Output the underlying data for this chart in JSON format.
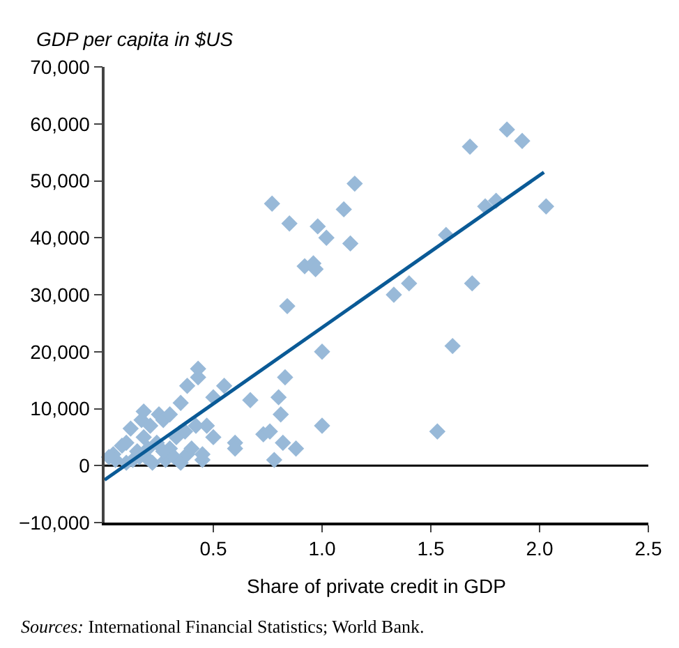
{
  "chart_data": {
    "type": "scatter",
    "ylabel": "GDP per capita in $US",
    "xlabel": "Share of private credit in GDP",
    "annotations": [
      "Sources: International Financial Statistics; World Bank."
    ],
    "marker": "diamond",
    "grid": false,
    "legend": false,
    "xlim": [
      0,
      2.5
    ],
    "xticks": [
      0.5,
      {
        "value": 1.0,
        "label": "1.0"
      },
      1.5,
      {
        "value": 2.0,
        "label": "2.0"
      },
      2.5
    ],
    "ylim": [
      -10000,
      70000
    ],
    "yticks": [
      {
        "value": -10000,
        "label": "−10,000"
      },
      0,
      {
        "value": 10000,
        "label": "10,000"
      },
      {
        "value": 20000,
        "label": "20,000"
      },
      {
        "value": 30000,
        "label": "30,000"
      },
      {
        "value": 40000,
        "label": "40,000"
      },
      {
        "value": 50000,
        "label": "50,000"
      },
      {
        "value": 60000,
        "label": "60,000"
      },
      {
        "value": 70000,
        "label": "70,000"
      }
    ],
    "ref_lines": [
      {
        "axis": "y",
        "value": 0,
        "color": "#000000"
      }
    ],
    "series": [
      {
        "color": "#98b9d8",
        "x": [
          0.02,
          0.04,
          0.05,
          0.08,
          0.1,
          0.1,
          0.12,
          0.13,
          0.15,
          0.17,
          0.18,
          0.18,
          0.19,
          0.2,
          0.21,
          0.22,
          0.24,
          0.25,
          0.27,
          0.28,
          0.3,
          0.3,
          0.32,
          0.33,
          0.35,
          0.35,
          0.37,
          0.38,
          0.38,
          0.4,
          0.42,
          0.43,
          0.43,
          0.45,
          0.45,
          0.47,
          0.5,
          0.5,
          0.55,
          0.6,
          0.6,
          0.67,
          0.27,
          0.16,
          0.77,
          0.85,
          0.84,
          0.83,
          0.92,
          0.96,
          0.97,
          0.98,
          1.02,
          1.1,
          1.13,
          1.15,
          1.0,
          1.0,
          0.78,
          0.8,
          0.81,
          0.82,
          0.73,
          0.76,
          0.88,
          1.33,
          1.4,
          1.53,
          1.57,
          1.6,
          1.68,
          1.69,
          1.75,
          1.8,
          1.85,
          1.92,
          2.03
        ],
        "values": [
          1500,
          2000,
          1000,
          3500,
          500,
          4000,
          6500,
          1000,
          2500,
          8000,
          9500,
          5000,
          1500,
          3000,
          7000,
          500,
          4000,
          9000,
          8000,
          1000,
          9000,
          3000,
          1500,
          5000,
          11000,
          500,
          6000,
          14000,
          2000,
          3000,
          7000,
          15500,
          17000,
          1000,
          2000,
          7000,
          12000,
          5000,
          14000,
          4000,
          3000,
          11500,
          2500,
          1500,
          46000,
          42500,
          28000,
          15500,
          35000,
          35500,
          34500,
          42000,
          40000,
          45000,
          39000,
          49500,
          20000,
          7000,
          1000,
          12000,
          9000,
          4000,
          5500,
          6000,
          3000,
          30000,
          32000,
          6000,
          40500,
          21000,
          56000,
          32000,
          45500,
          46500,
          59000,
          57000,
          45500
        ]
      },
      {
        "type": "line",
        "color": "#0a5a96",
        "marker": "none",
        "x": [
          0,
          2.02
        ],
        "values": [
          -2500,
          51500
        ]
      }
    ]
  }
}
